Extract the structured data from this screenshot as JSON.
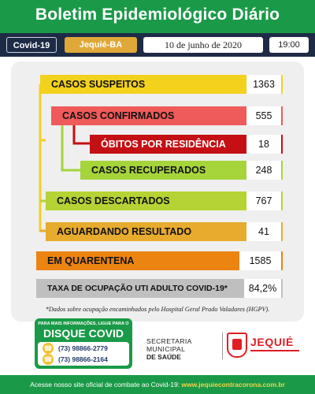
{
  "header": {
    "title": "Boletim Epidemiológico Diário"
  },
  "infobar": {
    "tag": "Covid-19",
    "city": "Jequié-BA",
    "date": "10 de junho de 2020",
    "time": "19:00"
  },
  "rows": [
    {
      "label": "CASOS SUSPEITOS",
      "value": "1363"
    },
    {
      "label": "CASOS CONFIRMADOS",
      "value": "555"
    },
    {
      "label": "ÓBITOS POR RESIDÊNCIA",
      "value": "18"
    },
    {
      "label": "CASOS RECUPERADOS",
      "value": "248"
    },
    {
      "label": "CASOS DESCARTADOS",
      "value": "767"
    },
    {
      "label": "AGUARDANDO RESULTADO",
      "value": "41"
    },
    {
      "label": "EM QUARENTENA",
      "value": "1585"
    },
    {
      "label": "TAXA DE OCUPAÇÃO UTI ADULTO COVID-19*",
      "value": "84,2%"
    }
  ],
  "colors": {
    "suspeitos": "#f2d21d",
    "confirmados": "#ef5a5a",
    "obitos": "#c40f14",
    "recuperados": "#a6d43b",
    "descartados": "#b5d334",
    "aguardando": "#e7ab2e",
    "quarentena": "#ec8412",
    "taxa": "#bfbfbf"
  },
  "note": "*Dados sobre ocupação encaminhados pelo Hospital Geral Prado Valadares (HGPV).",
  "disque": {
    "small": "PARA MAIS INFORMAÇÕES, LIGUE PARA O",
    "title": "DISQUE COVID",
    "phone1": "(73) 98866-2779",
    "phone2": "(73) 98866-2164"
  },
  "secretaria": {
    "line1": "SECRETARIA MUNICIPAL",
    "line2": "DE SAÚDE"
  },
  "logo": {
    "name": "JEQUIÉ"
  },
  "footer": {
    "text": "Acesse nosso site oficial de combate ao Covid-19:",
    "url": "www.jequiecontracorona.com.br"
  }
}
